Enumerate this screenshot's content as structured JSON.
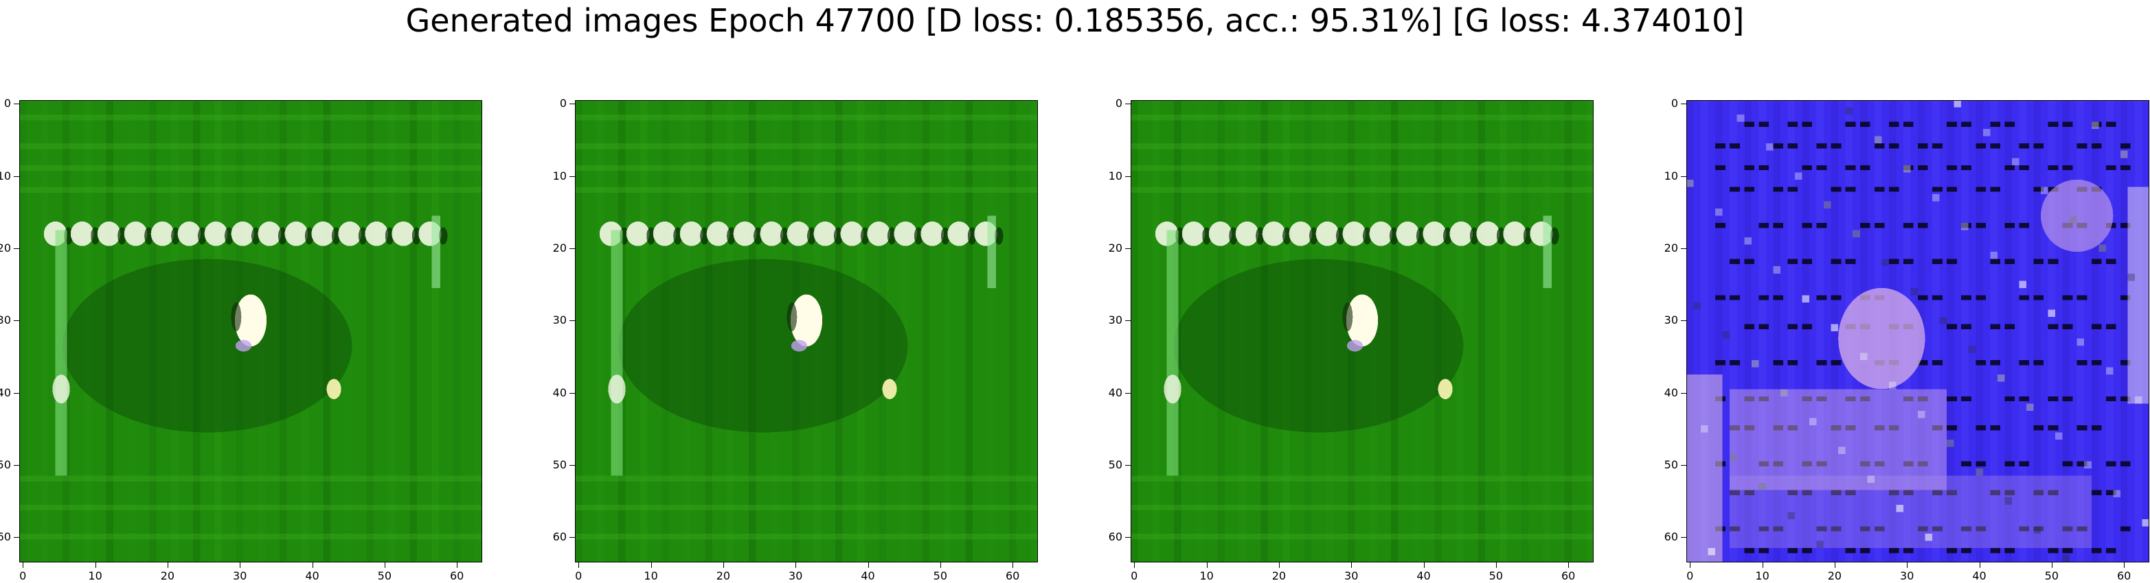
{
  "figure": {
    "title": "Generated images Epoch 47700 [D loss: 0.185356, acc.: 95.31%] [G loss: 4.374010]"
  },
  "axes": {
    "ticks": [
      0,
      10,
      20,
      30,
      40,
      50,
      60
    ],
    "range": [
      0,
      64
    ]
  },
  "panels": [
    {
      "palette": "green"
    },
    {
      "palette": "green"
    },
    {
      "palette": "green"
    },
    {
      "palette": "blue"
    }
  ],
  "colors": {
    "green_base": "#1f8a0c",
    "green_dark": "#0b4a06",
    "blue_base": "#3c2cf0",
    "blue_dark": "#10086a",
    "highlight": "#f4f8e6",
    "pink": "#d8b0e8"
  }
}
